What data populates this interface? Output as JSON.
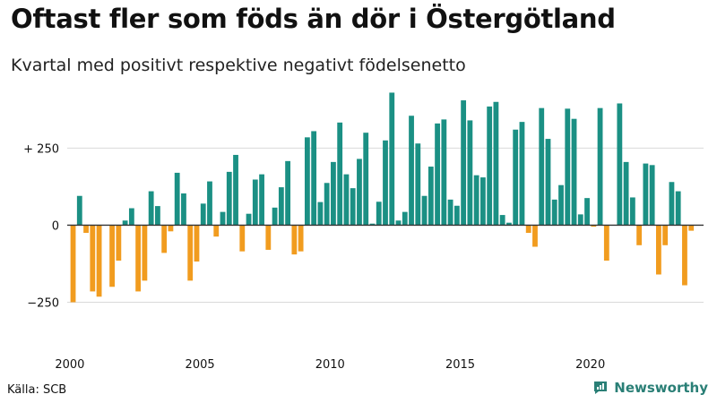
{
  "header": {
    "title": "Oftast fler som föds än dör i Östergötland",
    "subtitle": "Kvartal med positivt respektive negativt födelsenetto"
  },
  "footer": {
    "source": "Källa: SCB",
    "brand": "Newsworthy"
  },
  "colors": {
    "positive": "#1b9084",
    "negative": "#f19c1f",
    "grid": "#d9d9d9",
    "axis": "#333333",
    "brand": "#2a7f76"
  },
  "chart_data": {
    "type": "bar",
    "x_start": 2000,
    "periods_per_year": 4,
    "xlim": [
      1999.9,
      2024.35
    ],
    "ylim": [
      -330,
      440
    ],
    "y_ticks": [
      250,
      0,
      -250
    ],
    "y_tick_labels": [
      "+ 250",
      "0",
      "−250"
    ],
    "x_ticks": [
      2000,
      2005,
      2010,
      2015,
      2020
    ],
    "x_tick_labels": [
      "2000",
      "2005",
      "2010",
      "2015",
      "2020"
    ],
    "values": [
      -250,
      95,
      -25,
      -215,
      -232,
      0,
      -200,
      -115,
      15,
      55,
      -215,
      -180,
      110,
      62,
      -90,
      -20,
      170,
      103,
      -180,
      -118,
      70,
      142,
      -37,
      43,
      173,
      228,
      -85,
      37,
      148,
      165,
      -80,
      57,
      123,
      208,
      -95,
      -85,
      285,
      305,
      75,
      137,
      205,
      333,
      165,
      120,
      215,
      300,
      5,
      76,
      275,
      430,
      15,
      43,
      355,
      265,
      95,
      190,
      330,
      343,
      83,
      63,
      405,
      340,
      162,
      155,
      385,
      400,
      33,
      8,
      310,
      335,
      -25,
      -70,
      380,
      280,
      83,
      130,
      378,
      345,
      35,
      88,
      -5,
      380,
      -115,
      0,
      395,
      205,
      90,
      -65,
      200,
      195,
      -160,
      -65,
      140,
      110,
      -195,
      -18
    ]
  }
}
